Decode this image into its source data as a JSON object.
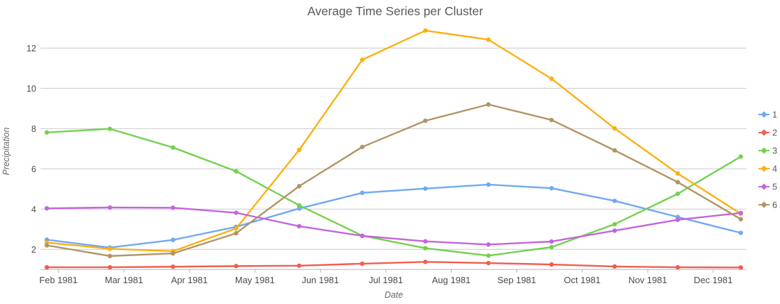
{
  "chart_data": {
    "type": "line",
    "title": "Average Time Series per Cluster",
    "xlabel": "Date",
    "ylabel": "Precipitation",
    "x_tick_labels": [
      "Feb 1981",
      "Mar 1981",
      "Apr 1981",
      "May 1981",
      "Jun 1981",
      "Jul 1981",
      "Aug 1981",
      "Sep 1981",
      "Oct 1981",
      "Nov 1981",
      "Dec 1981"
    ],
    "y_ticks": [
      2,
      4,
      6,
      8,
      10,
      12
    ],
    "ylim": [
      1,
      13.2
    ],
    "grid": "horizontal-only",
    "legend_position": "right",
    "points_note": "12 monthly data points per series; first point lies just left of the Feb 1981 tick",
    "series": [
      {
        "name": "1",
        "color": "#6FA8F3",
        "values": [
          2.48,
          2.09,
          2.47,
          3.12,
          4.03,
          4.81,
          5.02,
          5.22,
          5.04,
          4.41,
          3.61,
          2.82
        ]
      },
      {
        "name": "2",
        "color": "#F25C4F",
        "values": [
          1.11,
          1.11,
          1.14,
          1.17,
          1.19,
          1.29,
          1.38,
          1.32,
          1.25,
          1.15,
          1.11,
          1.1
        ]
      },
      {
        "name": "3",
        "color": "#72D14E",
        "values": [
          7.81,
          7.99,
          7.06,
          5.88,
          4.19,
          2.68,
          2.06,
          1.69,
          2.11,
          3.25,
          4.76,
          6.61
        ]
      },
      {
        "name": "4",
        "color": "#FDB00F",
        "values": [
          2.34,
          2.03,
          1.91,
          3.04,
          6.94,
          11.42,
          12.87,
          12.42,
          10.48,
          8.01,
          5.77,
          3.77
        ]
      },
      {
        "name": "5",
        "color": "#C464DE",
        "values": [
          4.04,
          4.08,
          4.07,
          3.82,
          3.15,
          2.67,
          2.4,
          2.24,
          2.39,
          2.93,
          3.47,
          3.81
        ]
      },
      {
        "name": "6",
        "color": "#B29464",
        "values": [
          2.2,
          1.67,
          1.8,
          2.8,
          5.14,
          7.09,
          8.39,
          9.2,
          8.43,
          6.92,
          5.34,
          3.5
        ]
      }
    ]
  }
}
